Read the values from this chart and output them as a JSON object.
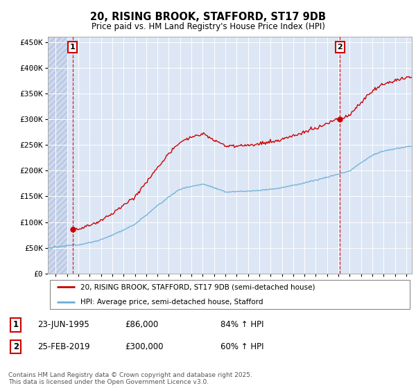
{
  "title": "20, RISING BROOK, STAFFORD, ST17 9DB",
  "subtitle": "Price paid vs. HM Land Registry's House Price Index (HPI)",
  "ylim": [
    0,
    460000
  ],
  "yticks": [
    0,
    50000,
    100000,
    150000,
    200000,
    250000,
    300000,
    350000,
    400000,
    450000
  ],
  "ytick_labels": [
    "£0",
    "£50K",
    "£100K",
    "£150K",
    "£200K",
    "£250K",
    "£300K",
    "£350K",
    "£400K",
    "£450K"
  ],
  "hpi_color": "#6baed6",
  "price_color": "#cc0000",
  "vline_color": "#cc0000",
  "purchase1_year": 1995.48,
  "purchase1_price": 86000,
  "purchase2_year": 2019.15,
  "purchase2_price": 300000,
  "legend_label1": "20, RISING BROOK, STAFFORD, ST17 9DB (semi-detached house)",
  "legend_label2": "HPI: Average price, semi-detached house, Stafford",
  "table_data": [
    [
      "1",
      "23-JUN-1995",
      "£86,000",
      "84% ↑ HPI"
    ],
    [
      "2",
      "25-FEB-2019",
      "£300,000",
      "60% ↑ HPI"
    ]
  ],
  "footnote": "Contains HM Land Registry data © Crown copyright and database right 2025.\nThis data is licensed under the Open Government Licence v3.0.",
  "chart_bg": "#dce6f5",
  "hatch_region_end": 1995.0,
  "xlim_start": 1993.3,
  "xlim_end": 2025.5
}
